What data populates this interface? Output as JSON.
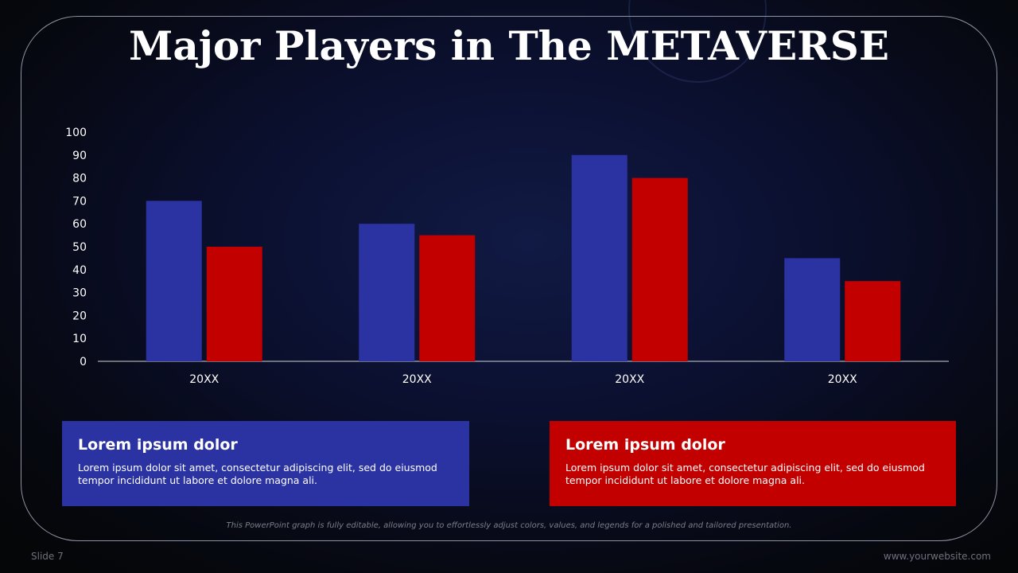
{
  "title": "Major Players in The METAVERSE",
  "chart_data": {
    "type": "bar",
    "categories": [
      "20XX",
      "20XX",
      "20XX",
      "20XX"
    ],
    "series": [
      {
        "values": [
          70,
          60,
          90,
          45
        ],
        "color": "#2b33a2"
      },
      {
        "values": [
          50,
          55,
          80,
          35
        ],
        "color": "#c20000"
      }
    ],
    "ylim": [
      0,
      100
    ],
    "yticks": [
      0,
      10,
      20,
      30,
      40,
      50,
      60,
      70,
      80,
      90,
      100
    ],
    "grid": false
  },
  "cards": [
    {
      "title": "Lorem ipsum dolor",
      "text": "Lorem ipsum dolor sit amet, consectetur adipiscing elit, sed do eiusmod tempor incididunt ut labore et dolore magna ali.",
      "color": "#2b33a2"
    },
    {
      "title": "Lorem ipsum dolor",
      "text": "Lorem ipsum dolor sit amet, consectetur adipiscing elit, sed do eiusmod tempor incididunt ut labore et dolore magna ali.",
      "color": "#c20000"
    }
  ],
  "footnote": "This PowerPoint graph is fully editable, allowing you to effortlessly adjust colors, values, and legends for a polished and tailored presentation.",
  "slide_number": "Slide 7",
  "website": "www.yourwebsite.com"
}
